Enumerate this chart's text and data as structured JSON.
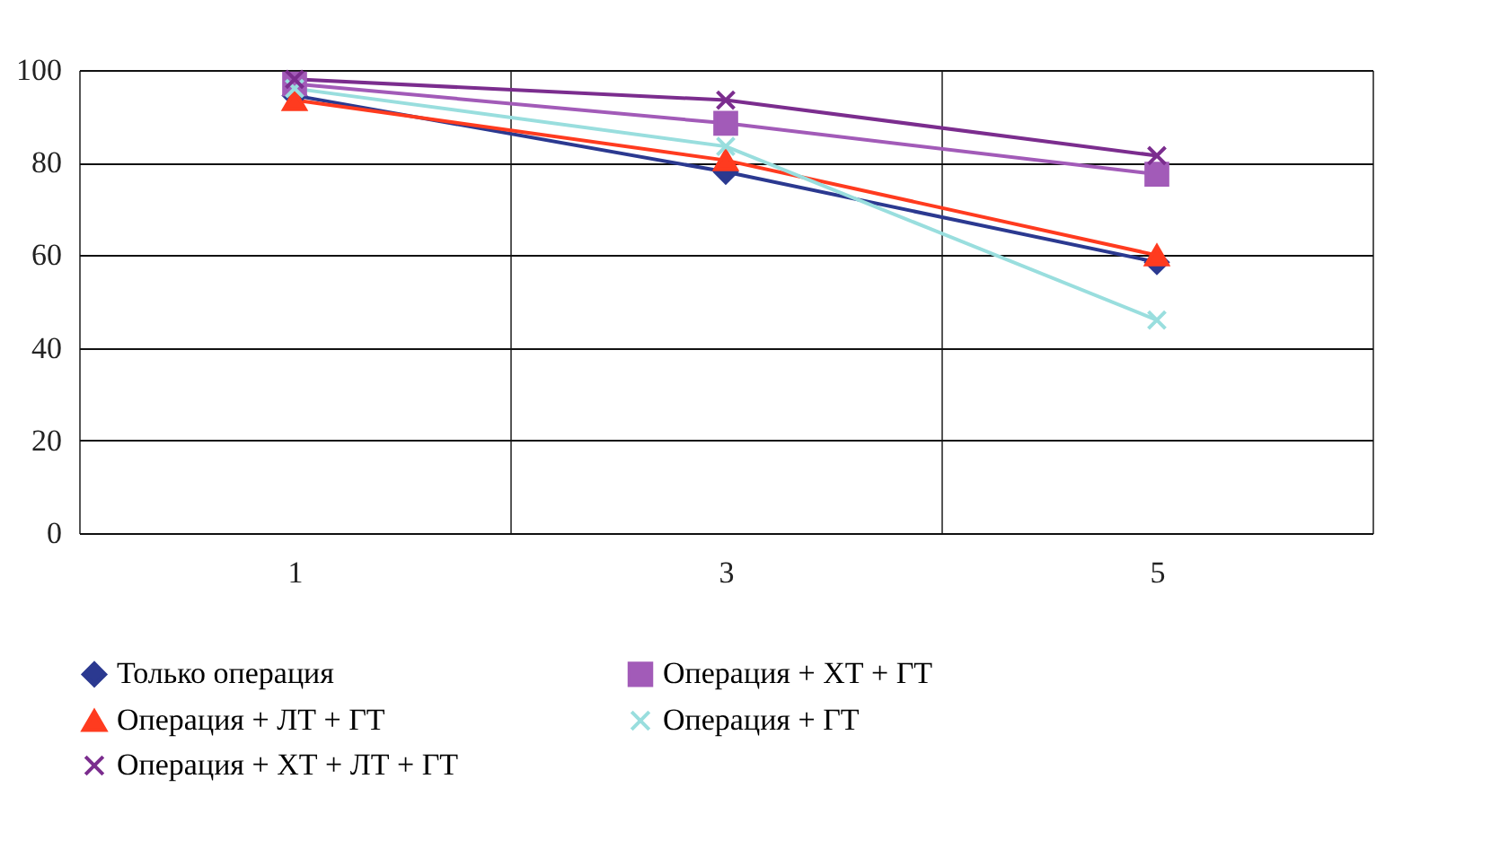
{
  "chart_data": {
    "type": "line",
    "categories": [
      "1",
      "3",
      "5"
    ],
    "series": [
      {
        "name": "Только операция",
        "color": "#2b3990",
        "marker": "diamond",
        "values": [
          94.5,
          78,
          58.5
        ]
      },
      {
        "name": "Операция + ХТ + ГТ",
        "color": "#a25bb8",
        "marker": "square",
        "values": [
          97,
          88.5,
          77.5
        ]
      },
      {
        "name": "Операция + ЛТ + ГТ",
        "color": "#ff3b1f",
        "marker": "triangle",
        "values": [
          93.5,
          80.5,
          60
        ]
      },
      {
        "name": "Операция + ГТ",
        "color": "#99dede",
        "marker": "cross",
        "values": [
          96,
          83.5,
          46
        ]
      },
      {
        "name": "Операция + ХТ + ЛТ + ГТ",
        "color": "#7b2d8e",
        "marker": "cross",
        "values": [
          98,
          93.5,
          81.5
        ]
      }
    ],
    "ylim": [
      0,
      100
    ],
    "yticks": [
      0,
      20,
      40,
      60,
      80,
      100
    ],
    "grid": true,
    "legend": "bottom",
    "line_style": "solid"
  }
}
